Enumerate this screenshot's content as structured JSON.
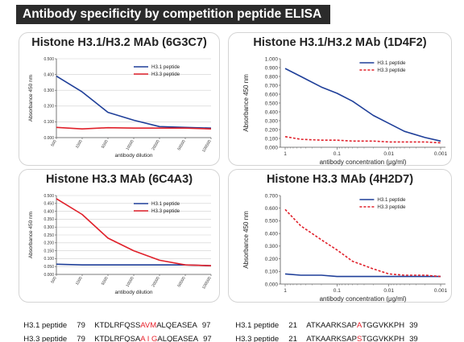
{
  "banner": "Antibody specificity by competition peptide ELISA",
  "colors": {
    "h31": "#1f3f99",
    "h33": "#e0202a",
    "grid": "#cfcfcf",
    "axis": "#555555"
  },
  "chart_data": [
    {
      "type": "line",
      "title": "Histone H3.1/H3.2 MAb (6G3C7)",
      "xlabel": "antibody dilution",
      "ylabel": "Absorbance 450 nm",
      "categories": [
        "500",
        "1000",
        "5000",
        "10000",
        "20000",
        "50000",
        "100000"
      ],
      "x_scale": "category",
      "ylim": [
        0,
        0.5
      ],
      "yticks": [
        "0.000",
        "0.100",
        "0.200",
        "0.300",
        "0.400",
        "0.500"
      ],
      "grid": true,
      "legend": "top-right",
      "series": [
        {
          "name": "H3.1 peptide",
          "color_key": "h31",
          "dashed": false,
          "values": [
            0.39,
            0.29,
            0.16,
            0.11,
            0.07,
            0.065,
            0.06
          ]
        },
        {
          "name": "H3.3 peptide",
          "color_key": "h33",
          "dashed": false,
          "values": [
            0.065,
            0.055,
            0.063,
            0.06,
            0.06,
            0.06,
            0.055
          ]
        }
      ]
    },
    {
      "type": "line",
      "title": "Histone H3.1/H3.2 MAb (1D4F2)",
      "xlabel": "antibody concentration (μg/ml)",
      "ylabel": "Absorbance 450 nm",
      "x_scale": "log-reversed",
      "x": [
        1,
        0.5,
        0.2,
        0.1,
        0.05,
        0.02,
        0.01,
        0.005,
        0.002,
        0.001
      ],
      "xticks": [
        "1",
        "0.1",
        "0.01",
        "0.001"
      ],
      "ylim": [
        0,
        1.0
      ],
      "yticks": [
        "0.000",
        "0.100",
        "0.200",
        "0.300",
        "0.400",
        "0.500",
        "0.600",
        "0.700",
        "0.800",
        "0.900",
        "1.000"
      ],
      "grid": false,
      "legend": "top-right",
      "series": [
        {
          "name": "H3.1 peptide",
          "color_key": "h31",
          "dashed": false,
          "values": [
            0.89,
            0.8,
            0.68,
            0.61,
            0.52,
            0.36,
            0.27,
            0.18,
            0.11,
            0.07
          ]
        },
        {
          "name": "H3.3 peptide",
          "color_key": "h33",
          "dashed": true,
          "values": [
            0.12,
            0.09,
            0.08,
            0.08,
            0.07,
            0.07,
            0.06,
            0.06,
            0.06,
            0.05
          ]
        }
      ]
    },
    {
      "type": "line",
      "title": "Histone H3.3 MAb (6C4A3)",
      "xlabel": "antibody dilution",
      "ylabel": "Absorbance 450 nm",
      "categories": [
        "500",
        "1000",
        "5000",
        "10000",
        "20000",
        "50000",
        "100000"
      ],
      "x_scale": "category",
      "ylim": [
        0,
        0.5
      ],
      "yticks": [
        "0.000",
        "0.050",
        "0.100",
        "0.150",
        "0.200",
        "0.250",
        "0.300",
        "0.350",
        "0.400",
        "0.450",
        "0.500"
      ],
      "grid": true,
      "legend": "top-right",
      "series": [
        {
          "name": "H3.1 peptide",
          "color_key": "h31",
          "dashed": false,
          "values": [
            0.065,
            0.06,
            0.06,
            0.06,
            0.06,
            0.06,
            0.055
          ]
        },
        {
          "name": "H3.3 peptide",
          "color_key": "h33",
          "dashed": false,
          "values": [
            0.48,
            0.38,
            0.23,
            0.15,
            0.09,
            0.06,
            0.055
          ]
        }
      ]
    },
    {
      "type": "line",
      "title": "Histone H3.3 MAb (4H2D7)",
      "xlabel": "antibody concentration (μg/ml)",
      "ylabel": "Absorbance 450 nm",
      "x_scale": "log-reversed",
      "x": [
        1,
        0.5,
        0.2,
        0.1,
        0.05,
        0.02,
        0.01,
        0.005,
        0.002,
        0.001
      ],
      "xticks": [
        "1",
        "0.1",
        "0.01",
        "0.001"
      ],
      "ylim": [
        0,
        0.7
      ],
      "yticks": [
        "0.000",
        "0.100",
        "0.200",
        "0.300",
        "0.400",
        "0.500",
        "0.600",
        "0.700"
      ],
      "grid": false,
      "legend": "top-right",
      "series": [
        {
          "name": "H3.1 peptide",
          "color_key": "h31",
          "dashed": false,
          "values": [
            0.08,
            0.07,
            0.07,
            0.06,
            0.06,
            0.06,
            0.06,
            0.06,
            0.06,
            0.06
          ]
        },
        {
          "name": "H3.3 peptide",
          "color_key": "h33",
          "dashed": true,
          "values": [
            0.59,
            0.46,
            0.35,
            0.27,
            0.18,
            0.12,
            0.08,
            0.07,
            0.07,
            0.06
          ]
        }
      ]
    }
  ],
  "sequences": {
    "left": [
      {
        "name": "H3.1 peptide",
        "start": "79",
        "pre": "KTDLRFQSS",
        "hl": "AVM",
        "post": "ALQEASEA",
        "end": "97"
      },
      {
        "name": "H3.3 peptide",
        "start": "79",
        "pre": "KTDLRFQSA",
        "hl": "A I G",
        "post": "ALQEASEA",
        "end": "97"
      }
    ],
    "right": [
      {
        "name": "H3.1 peptide",
        "start": "21",
        "pre": "ATKAARKSAP",
        "hl": "A",
        "post": "TGGVKKPH",
        "end": "39"
      },
      {
        "name": "H3.3 peptide",
        "start": "21",
        "pre": "ATKAARKSAP",
        "hl": "S",
        "post": "TGGVKKPH",
        "end": "39"
      }
    ]
  }
}
